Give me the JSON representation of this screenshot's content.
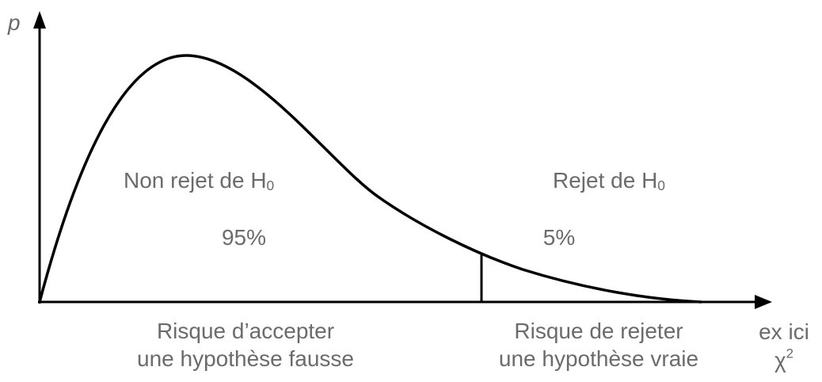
{
  "axis": {
    "y_label": "p",
    "x_note_line1": "ex ici",
    "x_note_symbol": "χ",
    "x_note_exponent": "2"
  },
  "regions": {
    "accept": {
      "title": "Non rejet de H",
      "title_subscript": "0",
      "percent": "95%",
      "risk_line1": "Risque d’accepter",
      "risk_line2": "une hypothèse fausse"
    },
    "reject": {
      "title": "Rejet de H",
      "title_subscript": "0",
      "percent": "5%",
      "risk_line1": "Risque de rejeter",
      "risk_line2": "une hypothèse vraie"
    }
  },
  "colors": {
    "line": "#000000",
    "text": "#6b6b6b"
  }
}
